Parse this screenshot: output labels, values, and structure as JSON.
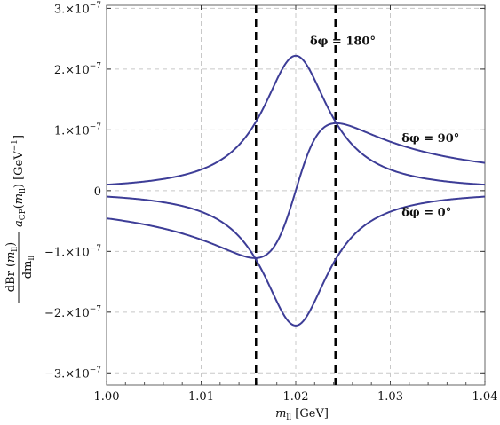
{
  "chart_data": {
    "type": "line",
    "xlabel": "m_ll [GeV]",
    "ylabel": "dBr(m_ll)/dm_ll · a_CP(m_ll) [GeV^-1]",
    "xlim": [
      1.0,
      1.04
    ],
    "ylim": [
      -3.2e-07,
      3.05e-07
    ],
    "x_ticks": [
      1.0,
      1.01,
      1.02,
      1.03,
      1.04
    ],
    "x_tick_labels": [
      "1.00",
      "1.01",
      "1.02",
      "1.03",
      "1.04"
    ],
    "y_ticks": [
      -3e-07,
      -2e-07,
      -1e-07,
      0,
      1e-07,
      2e-07,
      3e-07
    ],
    "y_tick_labels": [
      "−3.×10",
      "−2.×10",
      "−1.×10",
      "0",
      "1.×10",
      "2.×10",
      "3.×10"
    ],
    "y_tick_exponent": "−7",
    "grid": true,
    "resonance_mass": 1.02,
    "resonance_width": 0.0043,
    "vertical_lines_x": [
      1.0158,
      1.0242
    ],
    "series": [
      {
        "name": "δφ = 180°",
        "values": [
          [
            1.0,
            2.73e-09
          ],
          [
            1.005,
            4.5e-09
          ],
          [
            1.01,
            9.6e-09
          ],
          [
            1.012,
            1.48e-08
          ],
          [
            1.014,
            2.58e-08
          ],
          [
            1.016,
            5.28e-08
          ],
          [
            1.017,
            8.44e-08
          ],
          [
            1.018,
            1.41e-07
          ],
          [
            1.019,
            1.98e-07
          ],
          [
            1.02,
            2.22e-07
          ],
          [
            1.021,
            1.98e-07
          ],
          [
            1.022,
            1.41e-07
          ],
          [
            1.023,
            8.44e-08
          ],
          [
            1.024,
            5.28e-08
          ],
          [
            1.026,
            2.58e-08
          ],
          [
            1.028,
            1.48e-08
          ],
          [
            1.03,
            9.6e-09
          ],
          [
            1.035,
            4.5e-09
          ],
          [
            1.04,
            2.73e-09
          ]
        ]
      },
      {
        "name": "δφ = 90°",
        "values": [
          [
            1.0,
            -2.29e-08
          ],
          [
            1.005,
            -3.01e-08
          ],
          [
            1.01,
            -4.33e-08
          ],
          [
            1.012,
            -5.27e-08
          ],
          [
            1.014,
            -6.72e-08
          ],
          [
            1.016,
            -9.01e-08
          ],
          [
            1.017,
            -1.04e-07
          ],
          [
            1.018,
            -1.11e-07
          ],
          [
            1.019,
            -7.85e-08
          ],
          [
            1.02,
            0
          ],
          [
            1.021,
            7.85e-08
          ],
          [
            1.022,
            1.11e-07
          ],
          [
            1.023,
            1.04e-07
          ],
          [
            1.024,
            9.01e-08
          ],
          [
            1.026,
            6.72e-08
          ],
          [
            1.028,
            5.27e-08
          ],
          [
            1.03,
            4.33e-08
          ],
          [
            1.035,
            3.01e-08
          ],
          [
            1.04,
            2.29e-08
          ]
        ]
      },
      {
        "name": "δφ = 0°",
        "values": [
          [
            1.0,
            -2.73e-09
          ],
          [
            1.005,
            -4.5e-09
          ],
          [
            1.01,
            -9.6e-09
          ],
          [
            1.012,
            -1.48e-08
          ],
          [
            1.014,
            -2.58e-08
          ],
          [
            1.016,
            -5.28e-08
          ],
          [
            1.017,
            -8.44e-08
          ],
          [
            1.018,
            -1.41e-07
          ],
          [
            1.019,
            -1.98e-07
          ],
          [
            1.02,
            -2.22e-07
          ],
          [
            1.021,
            -1.98e-07
          ],
          [
            1.022,
            -1.41e-07
          ],
          [
            1.023,
            -8.44e-08
          ],
          [
            1.024,
            -5.28e-08
          ],
          [
            1.026,
            -2.58e-08
          ],
          [
            1.028,
            -1.48e-08
          ],
          [
            1.03,
            -9.6e-09
          ],
          [
            1.035,
            -4.5e-09
          ],
          [
            1.04,
            -2.73e-09
          ]
        ]
      }
    ],
    "annotations": [
      {
        "name": "label-180",
        "text": "δφ = 180°",
        "x": 1.0215,
        "y": 2.4e-07
      },
      {
        "name": "label-90",
        "text": "δφ = 90°",
        "x": 1.0312,
        "y": 8e-08
      },
      {
        "name": "label-0",
        "text": "δφ = 0°",
        "x": 1.0312,
        "y": -4.2e-08
      }
    ],
    "colors": {
      "curve": "#3d3d97",
      "grid": "#c8c8c8",
      "frame": "#666666",
      "vline": "#000000"
    }
  }
}
